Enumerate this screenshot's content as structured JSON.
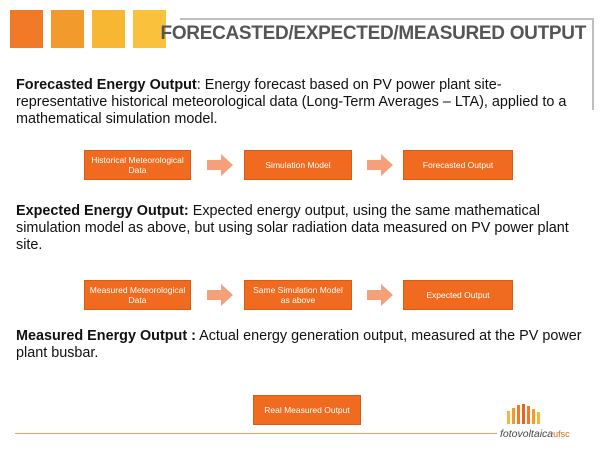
{
  "slide": {
    "title": "FORECASTED/EXPECTED/MEASURED OUTPUT"
  },
  "sections": [
    {
      "heading": "Forecasted Energy Output",
      "separator": ": ",
      "text": "Energy forecast based on PV power plant site-representative historical meteorological data (Long-Term Averages – LTA), applied to a mathematical simulation model.",
      "flow": [
        "Historical Meteorological Data",
        "Simulation Model",
        "Forecasted Output"
      ]
    },
    {
      "heading": "Expected Energy Output:",
      "separator": " ",
      "text": "Expected energy output, using the same mathematical simulation model as above, but using solar radiation data measured on PV power plant site.",
      "flow": [
        "Measured Meteorological Data",
        "Same Simulation Model as above",
        "Expected Output"
      ]
    },
    {
      "heading": "Measured Energy Output :",
      "separator": " ",
      "text": "Actual energy generation output, measured at the PV power plant busbar.",
      "flow": [
        "Real Measured Output"
      ]
    }
  ],
  "logo": {
    "main": "fotovoltaica",
    "suffix": "ufsc"
  },
  "colors": {
    "box": "#f06b1f",
    "arrow": "#f4a07a",
    "title": "#555555"
  }
}
